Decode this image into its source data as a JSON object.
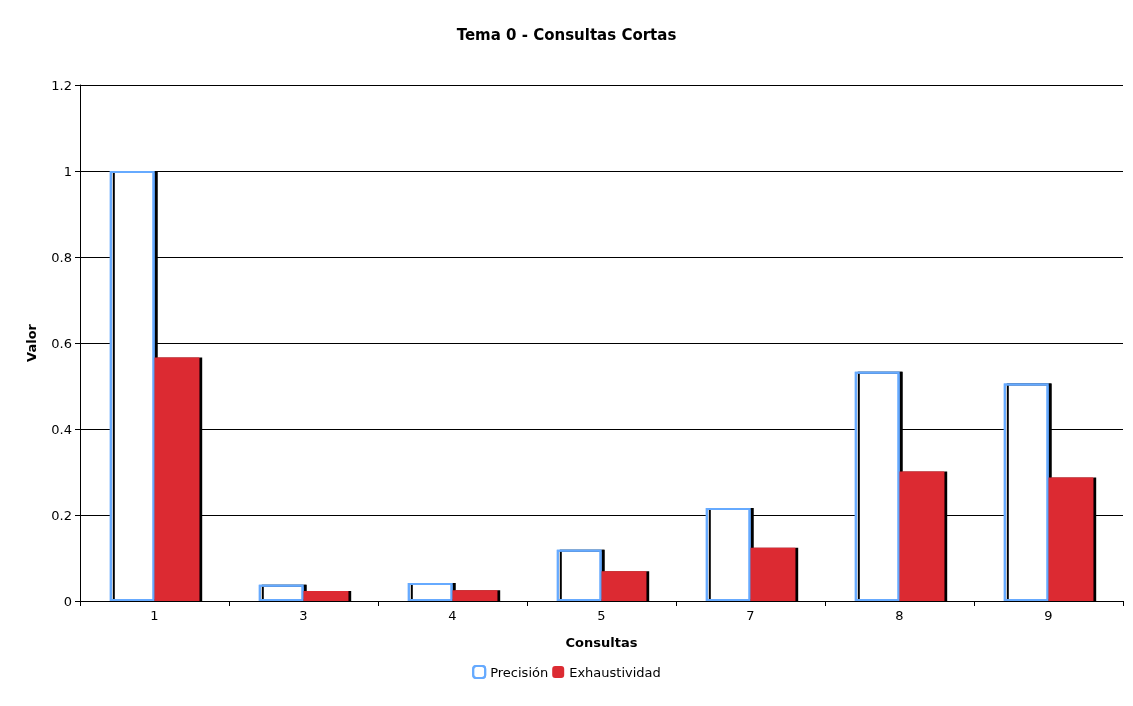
{
  "chart_data": {
    "type": "bar",
    "title": "Tema 0 - Consultas Cortas",
    "xlabel": "Consultas",
    "ylabel": "Valor",
    "categories": [
      "1",
      "3",
      "4",
      "5",
      "7",
      "8",
      "9"
    ],
    "series": [
      {
        "name": "Precisión",
        "color": "#66aaff",
        "values": [
          1.0,
          0.038,
          0.042,
          0.119,
          0.216,
          0.533,
          0.506
        ]
      },
      {
        "name": "Exhaustividad",
        "color": "#dc2b32",
        "values": [
          0.566,
          0.023,
          0.025,
          0.069,
          0.124,
          0.301,
          0.287
        ]
      }
    ],
    "ylim": [
      0,
      1.2
    ],
    "yticks": [
      0,
      0.2,
      0.4,
      0.6,
      0.8,
      1,
      1.2
    ],
    "grid": "y",
    "legend": "bottom"
  }
}
